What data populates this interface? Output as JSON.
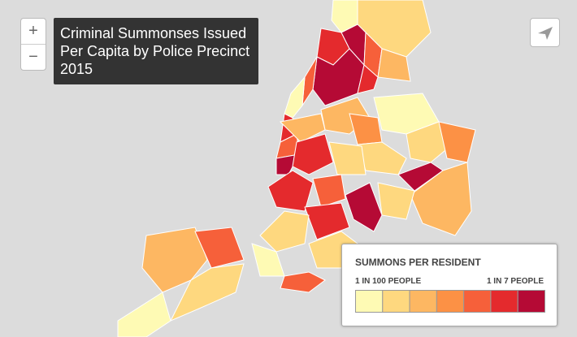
{
  "header": {
    "title_lines": [
      "Criminal Summonses Issued",
      "Per Capita by Police Precinct",
      "2015"
    ]
  },
  "controls": {
    "zoom_in": "+",
    "zoom_out": "−"
  },
  "legend": {
    "title": "SUMMONS PER RESIDENT",
    "low_label": "1 IN 100 PEOPLE",
    "high_label": "1 IN 7 PEOPLE",
    "colors": [
      "#fefab4",
      "#fed87f",
      "#fdb762",
      "#fc9145",
      "#f6603a",
      "#e42a2d",
      "#b50a35"
    ]
  }
}
